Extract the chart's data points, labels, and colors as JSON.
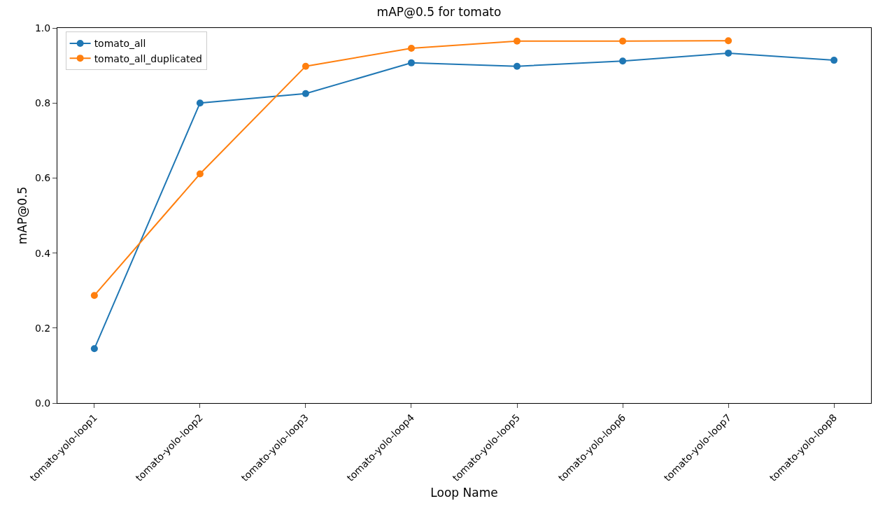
{
  "chart_data": {
    "type": "line",
    "title": "mAP@0.5 for tomato",
    "xlabel": "Loop Name",
    "ylabel": "mAP@0.5",
    "categories": [
      "tomato-yolo-loop1",
      "tomato-yolo-loop2",
      "tomato-yolo-loop3",
      "tomato-yolo-loop4",
      "tomato-yolo-loop5",
      "tomato-yolo-loop6",
      "tomato-yolo-loop7",
      "tomato-yolo-loop8"
    ],
    "series": [
      {
        "name": "tomato_all",
        "color": "#1f77b4",
        "values": [
          0.145,
          0.8,
          0.825,
          0.907,
          0.898,
          0.912,
          0.933,
          0.914
        ]
      },
      {
        "name": "tomato_all_duplicated",
        "color": "#ff7f0e",
        "values": [
          0.287,
          0.611,
          0.898,
          0.946,
          0.965,
          0.965,
          0.966,
          null
        ]
      }
    ],
    "ylim": [
      0,
      1
    ],
    "yticks": [
      {
        "value": 0,
        "label": "0.0"
      },
      {
        "value": 0.2,
        "label": "0.2"
      },
      {
        "value": 0.4,
        "label": "0.4"
      },
      {
        "value": 0.6,
        "label": "0.6"
      },
      {
        "value": 0.8,
        "label": "0.8"
      },
      {
        "value": 1,
        "label": "1.0"
      }
    ],
    "grid": false,
    "legend": "top left",
    "marker": "circle",
    "line_style": "solid"
  }
}
